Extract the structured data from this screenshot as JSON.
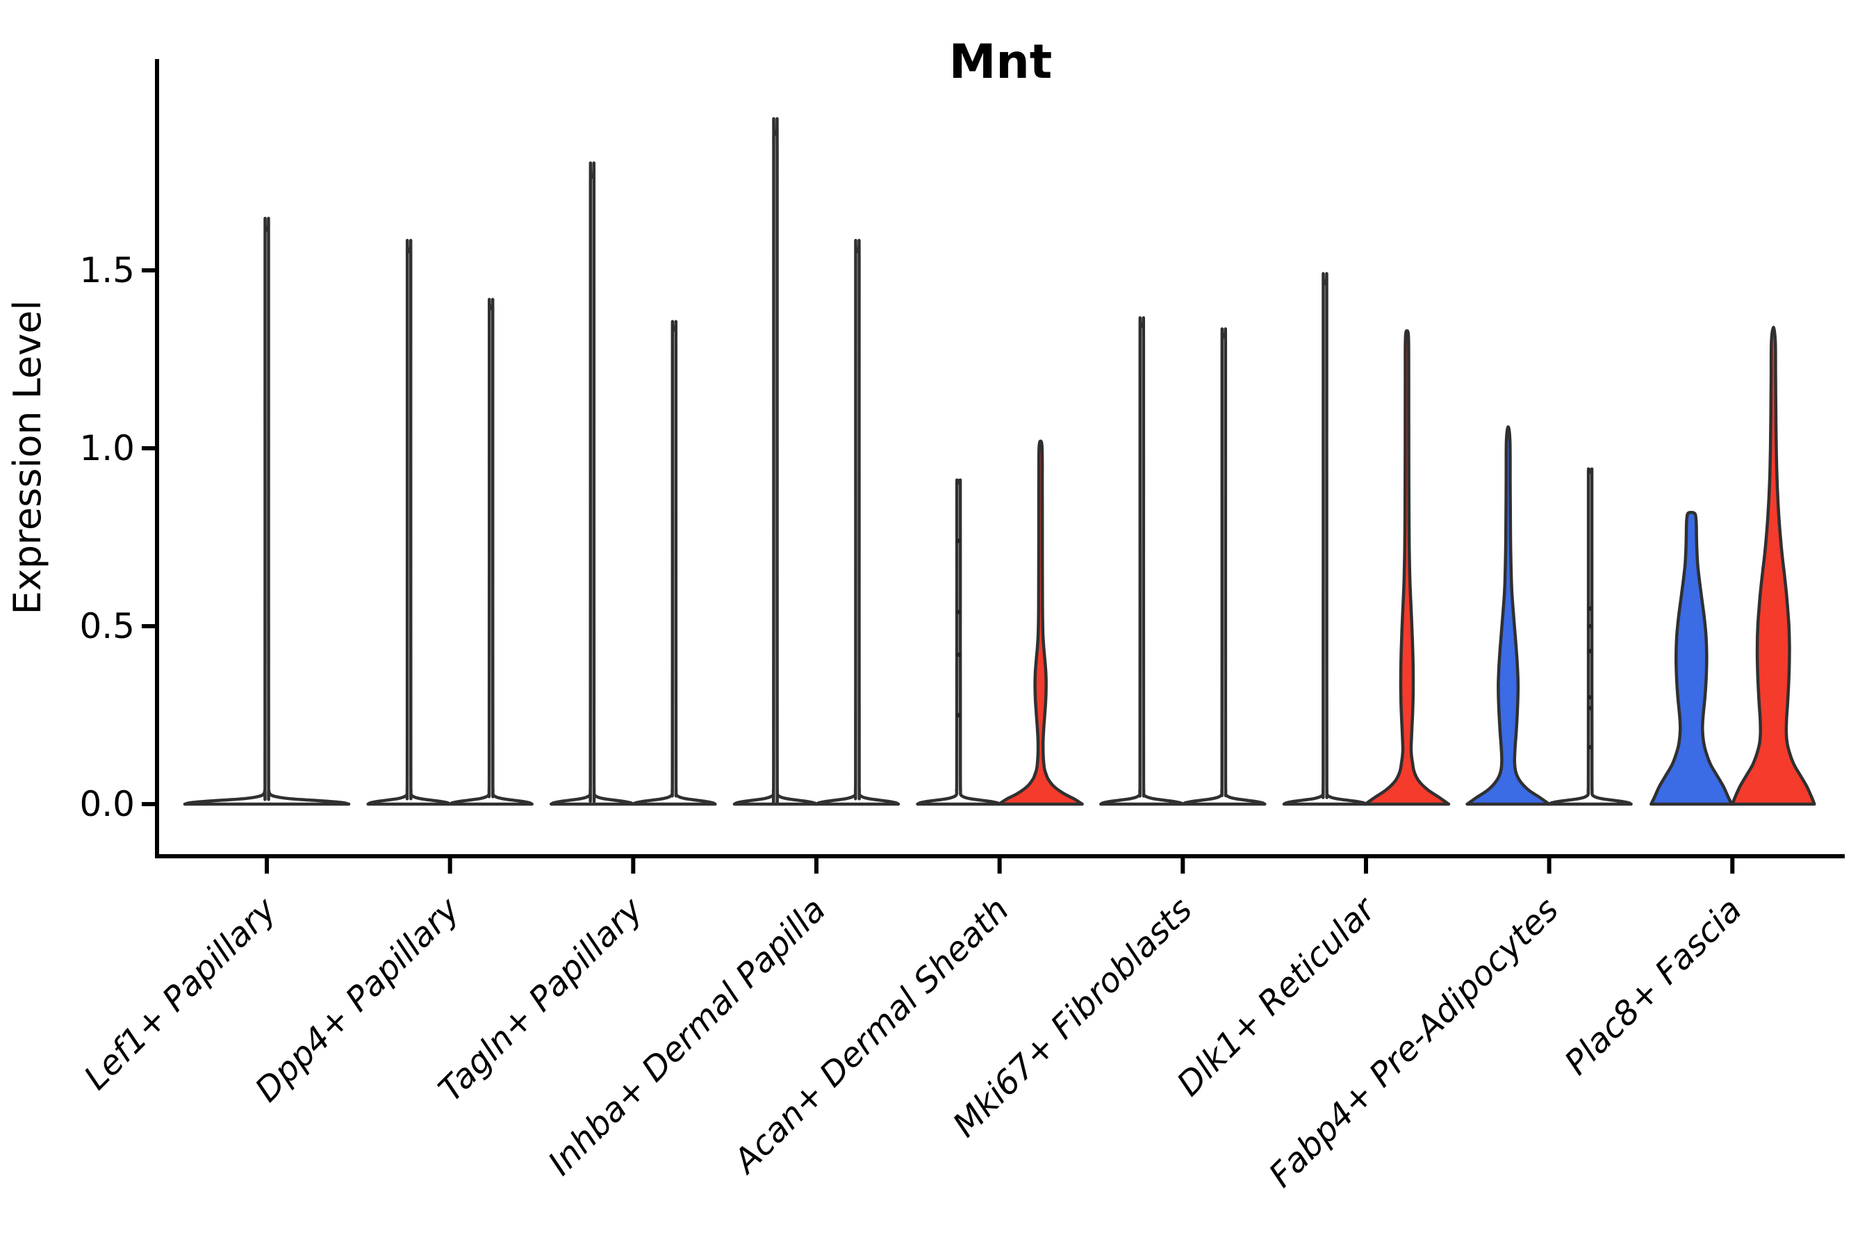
{
  "page": {
    "background": "#ffffff"
  },
  "chart_data": {
    "type": "violin",
    "title": "Mnt",
    "ylabel": "Expression Level",
    "xlabel": "",
    "yticks": [
      "0.0",
      "0.5",
      "1.0",
      "1.5"
    ],
    "ytick_values": [
      0.0,
      0.5,
      1.0,
      1.5
    ],
    "ylim": [
      -0.07,
      2.09
    ],
    "grid": false,
    "legend_position": "none",
    "categories": [
      "Lef1+ Papillary",
      "Dpp4+ Papillary",
      "Tagln+ Papillary",
      "Inhba+ Dermal Papilla",
      "Acan+ Dermal Sheath",
      "Mki67+ Fibroblasts",
      "Dlk1+ Reticular",
      "Fabp4+ Pre-Adipocytes",
      "Plac8+ Fascia"
    ],
    "colors": {
      "blue": "#3B6BE5",
      "red": "#F43B2C",
      "white": "#FFFFFF",
      "outline": "#303030",
      "axis": "#000000",
      "dot": "#222222"
    },
    "violins": [
      {
        "category": "Lef1+ Papillary",
        "cat": 0,
        "pos": "center",
        "fill": "white",
        "shape": "spike",
        "max": 1.62,
        "base_hw": 118
      },
      {
        "category": "Dpp4+ Papillary",
        "cat": 1,
        "pos": "left",
        "fill": "white",
        "shape": "spike",
        "max": 1.56,
        "base_hw": 59
      },
      {
        "category": "Dpp4+ Papillary",
        "cat": 1,
        "pos": "right",
        "fill": "white",
        "shape": "spike",
        "max": 1.4,
        "base_hw": 59
      },
      {
        "category": "Tagln+ Papillary",
        "cat": 2,
        "pos": "left",
        "fill": "white",
        "shape": "spike",
        "max": 1.77,
        "base_hw": 59
      },
      {
        "category": "Tagln+ Papillary",
        "cat": 2,
        "pos": "right",
        "fill": "white",
        "shape": "spike",
        "max": 1.34,
        "base_hw": 59
      },
      {
        "category": "Inhba+ Dermal Papilla",
        "cat": 3,
        "pos": "left",
        "fill": "white",
        "shape": "spike",
        "max": 1.89,
        "base_hw": 59
      },
      {
        "category": "Inhba+ Dermal Papilla",
        "cat": 3,
        "pos": "right",
        "fill": "white",
        "shape": "spike",
        "max": 1.56,
        "base_hw": 59
      },
      {
        "category": "Acan+ Dermal Sheath",
        "cat": 4,
        "pos": "left",
        "fill": "white",
        "shape": "spike",
        "max": 0.91,
        "base_hw": 59,
        "dots": [
          0.74,
          0.54,
          0.42,
          0.25
        ]
      },
      {
        "category": "Acan+ Dermal Sheath",
        "cat": 4,
        "pos": "right",
        "fill": "red",
        "shape": "profile",
        "max": 1.02,
        "profile": [
          [
            0,
            60
          ],
          [
            0.015,
            48
          ],
          [
            0.03,
            33
          ],
          [
            0.05,
            19
          ],
          [
            0.07,
            11
          ],
          [
            0.084,
            8
          ],
          [
            0.1,
            5.5
          ],
          [
            0.13,
            4
          ],
          [
            0.17,
            3.6
          ],
          [
            0.21,
            4.5
          ],
          [
            0.25,
            6
          ],
          [
            0.29,
            7.4
          ],
          [
            0.33,
            8
          ],
          [
            0.37,
            7.6
          ],
          [
            0.41,
            6
          ],
          [
            0.44,
            4.6
          ],
          [
            0.48,
            3.4
          ],
          [
            0.55,
            2.8
          ],
          [
            0.7,
            2.6
          ],
          [
            0.9,
            2.5
          ],
          [
            1.0,
            2.2
          ],
          [
            1.02,
            0
          ]
        ]
      },
      {
        "category": "Mki67+ Fibroblasts",
        "cat": 5,
        "pos": "left",
        "fill": "white",
        "shape": "spike",
        "max": 1.35,
        "base_hw": 59
      },
      {
        "category": "Mki67+ Fibroblasts",
        "cat": 5,
        "pos": "right",
        "fill": "white",
        "shape": "spike",
        "max": 1.32,
        "base_hw": 59
      },
      {
        "category": "Dlk1+ Reticular",
        "cat": 6,
        "pos": "left",
        "fill": "white",
        "shape": "spike",
        "max": 1.47,
        "base_hw": 59
      },
      {
        "category": "Dlk1+ Reticular",
        "cat": 6,
        "pos": "right",
        "fill": "red",
        "shape": "profile",
        "max": 1.33,
        "profile": [
          [
            0,
            60
          ],
          [
            0.018,
            47
          ],
          [
            0.04,
            30
          ],
          [
            0.065,
            17
          ],
          [
            0.09,
            10.5
          ],
          [
            0.115,
            8
          ],
          [
            0.15,
            6
          ],
          [
            0.2,
            6.8
          ],
          [
            0.25,
            8
          ],
          [
            0.3,
            8.8
          ],
          [
            0.35,
            9
          ],
          [
            0.4,
            8.7
          ],
          [
            0.46,
            7.8
          ],
          [
            0.52,
            6.6
          ],
          [
            0.58,
            5.2
          ],
          [
            0.63,
            4.2
          ],
          [
            0.7,
            3.4
          ],
          [
            0.8,
            2.9
          ],
          [
            1.0,
            2.6
          ],
          [
            1.2,
            2.5
          ],
          [
            1.31,
            2.2
          ],
          [
            1.33,
            0
          ]
        ]
      },
      {
        "category": "Fabp4+ Pre-Adipocytes",
        "cat": 7,
        "pos": "left",
        "fill": "blue",
        "shape": "profile",
        "max": 1.06,
        "profile": [
          [
            0,
            59
          ],
          [
            0.018,
            46
          ],
          [
            0.04,
            29
          ],
          [
            0.065,
            17
          ],
          [
            0.09,
            11
          ],
          [
            0.12,
            9.2
          ],
          [
            0.16,
            10
          ],
          [
            0.2,
            11.5
          ],
          [
            0.25,
            13
          ],
          [
            0.3,
            14
          ],
          [
            0.34,
            14.2
          ],
          [
            0.39,
            13.2
          ],
          [
            0.44,
            11.5
          ],
          [
            0.5,
            9
          ],
          [
            0.55,
            7
          ],
          [
            0.6,
            5.2
          ],
          [
            0.66,
            4.2
          ],
          [
            0.75,
            3.4
          ],
          [
            0.9,
            2.9
          ],
          [
            1.02,
            2.6
          ],
          [
            1.06,
            0
          ]
        ]
      },
      {
        "category": "Fabp4+ Pre-Adipocytes",
        "cat": 7,
        "pos": "right",
        "fill": "white",
        "shape": "spike",
        "max": 0.94,
        "base_hw": 59,
        "dots": [
          0.55,
          0.5,
          0.43,
          0.3,
          0.27,
          0.16
        ]
      },
      {
        "category": "Plac8+ Fascia",
        "cat": 8,
        "pos": "left",
        "fill": "blue",
        "shape": "profile",
        "max": 0.82,
        "profile": [
          [
            0,
            58
          ],
          [
            0.02,
            53
          ],
          [
            0.05,
            46
          ],
          [
            0.08,
            37
          ],
          [
            0.11,
            28
          ],
          [
            0.14,
            22
          ],
          [
            0.17,
            18
          ],
          [
            0.21,
            16
          ],
          [
            0.25,
            17
          ],
          [
            0.3,
            19.5
          ],
          [
            0.35,
            21.2
          ],
          [
            0.4,
            22
          ],
          [
            0.44,
            21.8
          ],
          [
            0.48,
            20.8
          ],
          [
            0.53,
            18.2
          ],
          [
            0.58,
            14.8
          ],
          [
            0.63,
            11.5
          ],
          [
            0.67,
            9.2
          ],
          [
            0.71,
            8
          ],
          [
            0.75,
            7.4
          ],
          [
            0.79,
            7
          ],
          [
            0.815,
            5.5
          ],
          [
            0.82,
            0
          ]
        ]
      },
      {
        "category": "Plac8+ Fascia",
        "cat": 8,
        "pos": "right",
        "fill": "red",
        "shape": "profile",
        "max": 1.34,
        "profile": [
          [
            0,
            59
          ],
          [
            0.02,
            55
          ],
          [
            0.05,
            48
          ],
          [
            0.08,
            39
          ],
          [
            0.11,
            30
          ],
          [
            0.14,
            24
          ],
          [
            0.17,
            20
          ],
          [
            0.2,
            18.6
          ],
          [
            0.24,
            19
          ],
          [
            0.28,
            20.4
          ],
          [
            0.33,
            21.8
          ],
          [
            0.38,
            22.8
          ],
          [
            0.44,
            23.2
          ],
          [
            0.5,
            22.4
          ],
          [
            0.55,
            20.6
          ],
          [
            0.6,
            18.4
          ],
          [
            0.65,
            15.6
          ],
          [
            0.7,
            12.6
          ],
          [
            0.75,
            10.2
          ],
          [
            0.8,
            8.2
          ],
          [
            0.86,
            6.4
          ],
          [
            0.93,
            5
          ],
          [
            1.0,
            4.2
          ],
          [
            1.1,
            3.6
          ],
          [
            1.2,
            3.2
          ],
          [
            1.3,
            2.8
          ],
          [
            1.34,
            0
          ]
        ]
      }
    ]
  }
}
